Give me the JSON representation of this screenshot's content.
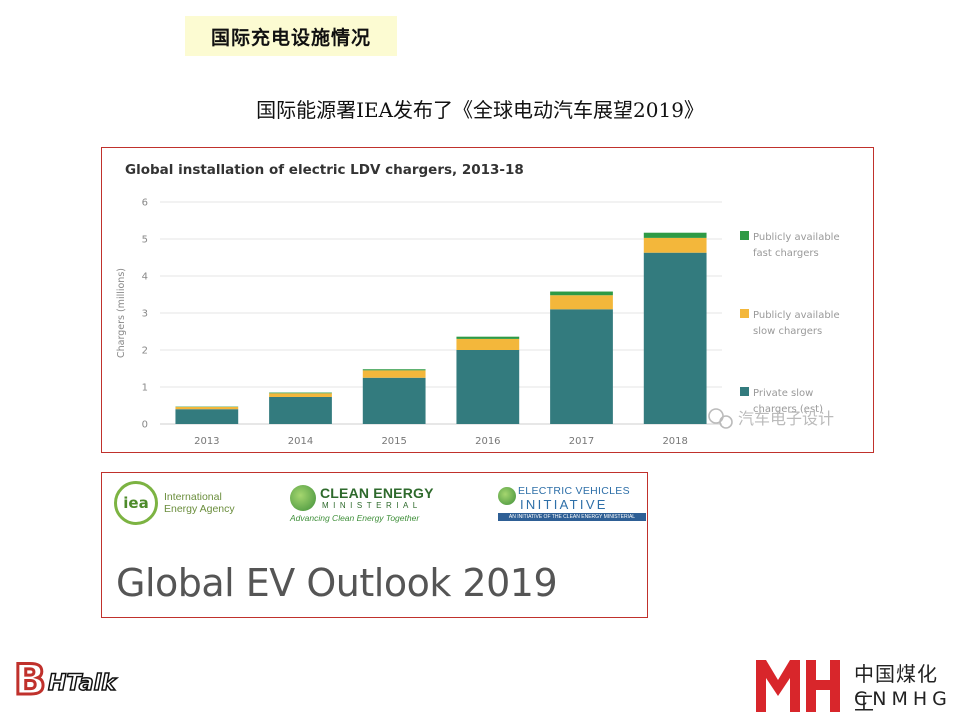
{
  "slide": {
    "title": "国际充电设施情况",
    "subtitle": "国际能源署IEA发布了《全球电动汽车展望2019》"
  },
  "chart_data": {
    "type": "bar",
    "stacked": true,
    "title": "Global installation of electric LDV chargers, 2013-18",
    "xlabel": "",
    "ylabel": "Chargers (millions)",
    "ylim": [
      0,
      6
    ],
    "yticks": [
      0,
      1,
      2,
      3,
      4,
      5,
      6
    ],
    "grid": true,
    "legend_position": "right",
    "categories": [
      "2013",
      "2014",
      "2015",
      "2016",
      "2017",
      "2018"
    ],
    "series": [
      {
        "name": "Private slow chargers",
        "legend": [
          "Private slow",
          "chargers (est)"
        ],
        "color": "#337b7e",
        "values": [
          0.4,
          0.73,
          1.25,
          2.0,
          3.1,
          4.63
        ]
      },
      {
        "name": "Publicly available slow chargers",
        "legend": [
          "Publicly available",
          "slow chargers"
        ],
        "color": "#f3b73b",
        "values": [
          0.06,
          0.1,
          0.2,
          0.3,
          0.38,
          0.4
        ]
      },
      {
        "name": "Publicly available fast chargers",
        "legend": [
          "Publicly available",
          "fast chargers"
        ],
        "color": "#2e9a45",
        "values": [
          0.01,
          0.02,
          0.03,
          0.06,
          0.1,
          0.14
        ]
      }
    ],
    "watermark": "汽车电子设计"
  },
  "report": {
    "title": "Global EV Outlook 2019",
    "logos": {
      "iea_mark": "iea",
      "iea_line1": "International",
      "iea_line2": "Energy Agency",
      "cem_name": "CLEAN ENERGY",
      "cem_sub": "MINISTERIAL",
      "cem_tagline": "Advancing Clean Energy Together",
      "evi_line1": "ELECTRIC VEHICLES",
      "evi_line2": "INITIATIVE",
      "evi_bar": "AN INITIATIVE OF THE CLEAN ENERGY MINISTERIAL"
    }
  },
  "footer": {
    "left_logo": "BHTalk",
    "left_logo_b": "B",
    "left_logo_rest": "HTalk",
    "right_logo_cn": "中国煤化工",
    "right_logo_en": "CNMHG"
  },
  "colors": {
    "accent_red": "#c0312c",
    "title_bg": "#fcfbd2"
  }
}
